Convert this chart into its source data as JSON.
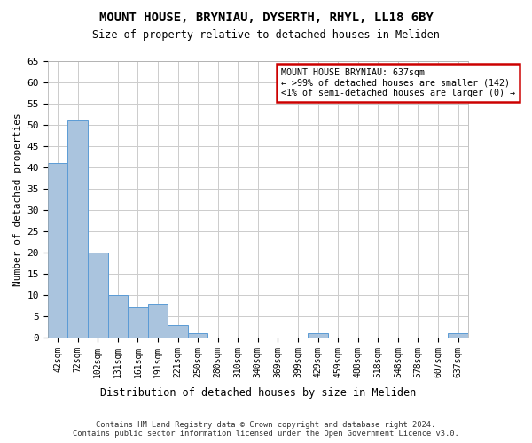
{
  "title1": "MOUNT HOUSE, BRYNIAU, DYSERTH, RHYL, LL18 6BY",
  "title2": "Size of property relative to detached houses in Meliden",
  "xlabel": "Distribution of detached houses by size in Meliden",
  "ylabel": "Number of detached properties",
  "footer1": "Contains HM Land Registry data © Crown copyright and database right 2024.",
  "footer2": "Contains public sector information licensed under the Open Government Licence v3.0.",
  "bins": [
    "42sqm",
    "72sqm",
    "102sqm",
    "131sqm",
    "161sqm",
    "191sqm",
    "221sqm",
    "250sqm",
    "280sqm",
    "310sqm",
    "340sqm",
    "369sqm",
    "399sqm",
    "429sqm",
    "459sqm",
    "488sqm",
    "518sqm",
    "548sqm",
    "578sqm",
    "607sqm",
    "637sqm"
  ],
  "values": [
    41,
    51,
    20,
    10,
    7,
    8,
    3,
    1,
    0,
    0,
    0,
    0,
    0,
    1,
    0,
    0,
    0,
    0,
    0,
    0,
    1
  ],
  "bar_color": "#aac4de",
  "bar_edge_color": "#5b9bd5",
  "annotation_title": "MOUNT HOUSE BRYNIAU: 637sqm",
  "annotation_line1": "← >99% of detached houses are smaller (142)",
  "annotation_line2": "<1% of semi-detached houses are larger (0) →",
  "annotation_box_color": "#ffffff",
  "annotation_border_color": "#cc0000",
  "ylim": [
    0,
    65
  ],
  "yticks": [
    0,
    5,
    10,
    15,
    20,
    25,
    30,
    35,
    40,
    45,
    50,
    55,
    60,
    65
  ],
  "background_color": "#ffffff",
  "grid_color": "#cccccc"
}
